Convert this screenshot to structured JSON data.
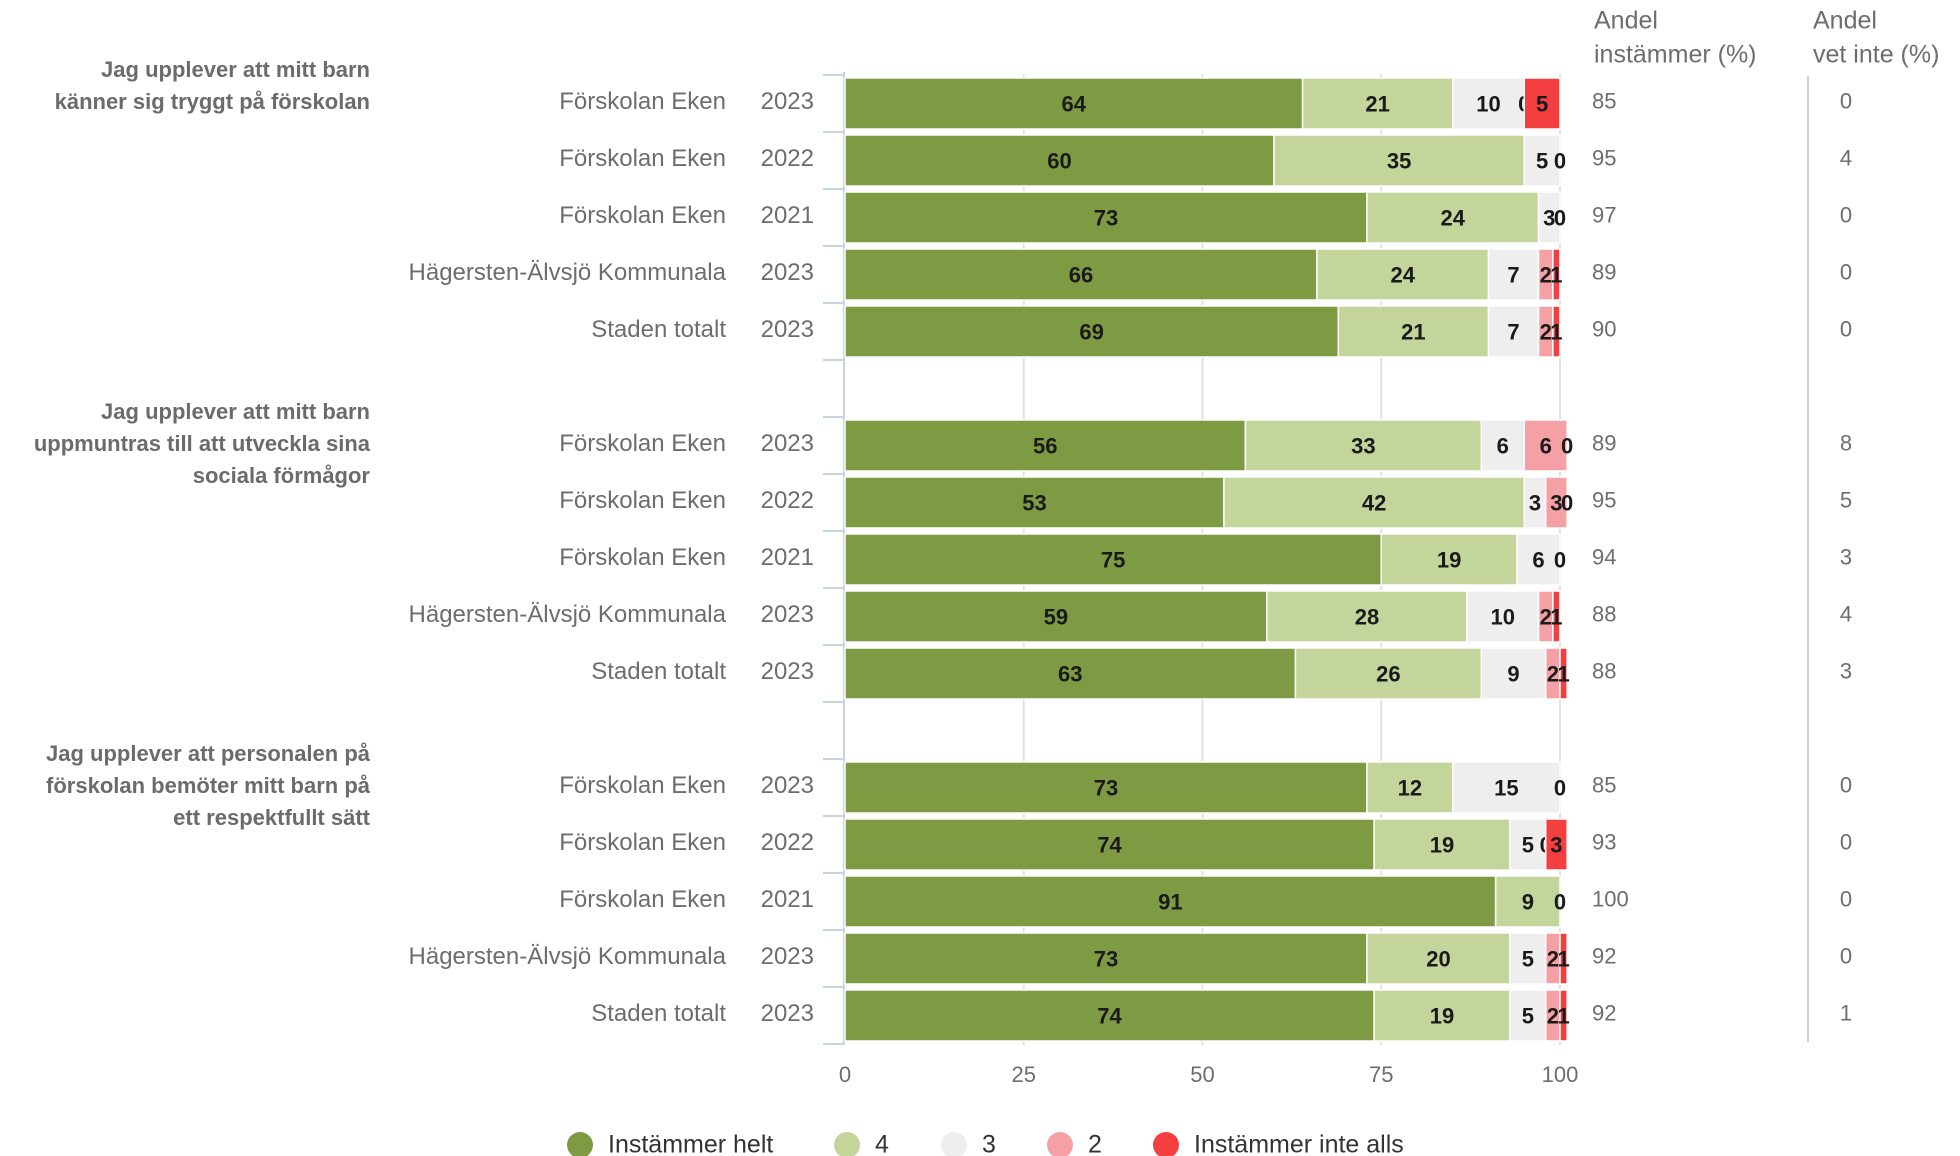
{
  "chart_data": {
    "type": "bar",
    "stacked": true,
    "orientation": "horizontal",
    "xlim": [
      0,
      100
    ],
    "xticks": [
      "0",
      "25",
      "50",
      "75",
      "100"
    ],
    "grid": true,
    "legend_position": "bottom",
    "column_headers": {
      "share_agree": [
        "Andel",
        "instämmer (%)"
      ],
      "share_dont_know": [
        "Andel",
        "vet inte (%)"
      ]
    },
    "series": [
      {
        "name": "Instämmer helt",
        "color": "#7e9b43"
      },
      {
        "name": "4",
        "color": "#c3d59a"
      },
      {
        "name": "3",
        "color": "#eeeeee"
      },
      {
        "name": "2",
        "color": "#f5a0a4"
      },
      {
        "name": "Instämmer inte alls",
        "color": "#f33f40"
      }
    ],
    "groups": [
      {
        "question": [
          "Jag upplever att mitt barn",
          "känner sig tryggt på förskolan"
        ],
        "rows": [
          {
            "unit": "Förskolan Eken",
            "year": "2023",
            "values": [
              64,
              21,
              10,
              0,
              5
            ],
            "labels": [
              "64",
              "21",
              "10",
              "0",
              "5"
            ],
            "agree": "85",
            "dont_know": "0"
          },
          {
            "unit": "Förskolan Eken",
            "year": "2022",
            "values": [
              60,
              35,
              5,
              0,
              0
            ],
            "labels": [
              "60",
              "35",
              "5",
              "0",
              ""
            ],
            "agree": "95",
            "dont_know": "4"
          },
          {
            "unit": "Förskolan Eken",
            "year": "2021",
            "values": [
              73,
              24,
              3,
              0,
              0
            ],
            "labels": [
              "73",
              "24",
              "3",
              "0",
              ""
            ],
            "agree": "97",
            "dont_know": "0"
          },
          {
            "unit": "Hägersten-Älvsjö Kommunala",
            "year": "2023",
            "values": [
              66,
              24,
              7,
              2,
              1
            ],
            "labels": [
              "66",
              "24",
              "7",
              "2",
              "1"
            ],
            "agree": "89",
            "dont_know": "0"
          },
          {
            "unit": "Staden totalt",
            "year": "2023",
            "values": [
              69,
              21,
              7,
              2,
              1
            ],
            "labels": [
              "69",
              "21",
              "7",
              "2",
              "1"
            ],
            "agree": "90",
            "dont_know": "0"
          }
        ]
      },
      {
        "question": [
          "Jag upplever att mitt barn",
          "uppmuntras till att utveckla sina",
          "sociala förmågor"
        ],
        "rows": [
          {
            "unit": "Förskolan Eken",
            "year": "2023",
            "values": [
              56,
              33,
              6,
              6,
              0
            ],
            "labels": [
              "56",
              "33",
              "6",
              "6",
              "0"
            ],
            "agree": "89",
            "dont_know": "8"
          },
          {
            "unit": "Förskolan Eken",
            "year": "2022",
            "values": [
              53,
              42,
              3,
              3,
              0
            ],
            "labels": [
              "53",
              "42",
              "3",
              "3",
              "0"
            ],
            "agree": "95",
            "dont_know": "5"
          },
          {
            "unit": "Förskolan Eken",
            "year": "2021",
            "values": [
              75,
              19,
              6,
              0,
              0
            ],
            "labels": [
              "75",
              "19",
              "6",
              "0",
              ""
            ],
            "agree": "94",
            "dont_know": "3"
          },
          {
            "unit": "Hägersten-Älvsjö Kommunala",
            "year": "2023",
            "values": [
              59,
              28,
              10,
              2,
              1
            ],
            "labels": [
              "59",
              "28",
              "10",
              "2",
              "1"
            ],
            "agree": "88",
            "dont_know": "4"
          },
          {
            "unit": "Staden totalt",
            "year": "2023",
            "values": [
              63,
              26,
              9,
              2,
              1
            ],
            "labels": [
              "63",
              "26",
              "9",
              "2",
              "1"
            ],
            "agree": "88",
            "dont_know": "3"
          }
        ]
      },
      {
        "question": [
          "Jag upplever att personalen på",
          "förskolan bemöter mitt barn på",
          "ett respektfullt sätt"
        ],
        "rows": [
          {
            "unit": "Förskolan Eken",
            "year": "2023",
            "values": [
              73,
              12,
              15,
              0,
              0
            ],
            "labels": [
              "73",
              "12",
              "15",
              "0",
              ""
            ],
            "agree": "85",
            "dont_know": "0"
          },
          {
            "unit": "Förskolan Eken",
            "year": "2022",
            "values": [
              74,
              19,
              5,
              0,
              3
            ],
            "labels": [
              "74",
              "19",
              "5",
              "0",
              "3"
            ],
            "agree": "93",
            "dont_know": "0"
          },
          {
            "unit": "Förskolan Eken",
            "year": "2021",
            "values": [
              91,
              9,
              0,
              0,
              0
            ],
            "labels": [
              "91",
              "9",
              "",
              "0",
              ""
            ],
            "agree": "100",
            "dont_know": "0"
          },
          {
            "unit": "Hägersten-Älvsjö Kommunala",
            "year": "2023",
            "values": [
              73,
              20,
              5,
              2,
              1
            ],
            "labels": [
              "73",
              "20",
              "5",
              "2",
              "1"
            ],
            "agree": "92",
            "dont_know": "0"
          },
          {
            "unit": "Staden totalt",
            "year": "2023",
            "values": [
              74,
              19,
              5,
              2,
              1
            ],
            "labels": [
              "74",
              "19",
              "5",
              "2",
              "1"
            ],
            "agree": "92",
            "dont_know": "1"
          }
        ]
      }
    ]
  }
}
